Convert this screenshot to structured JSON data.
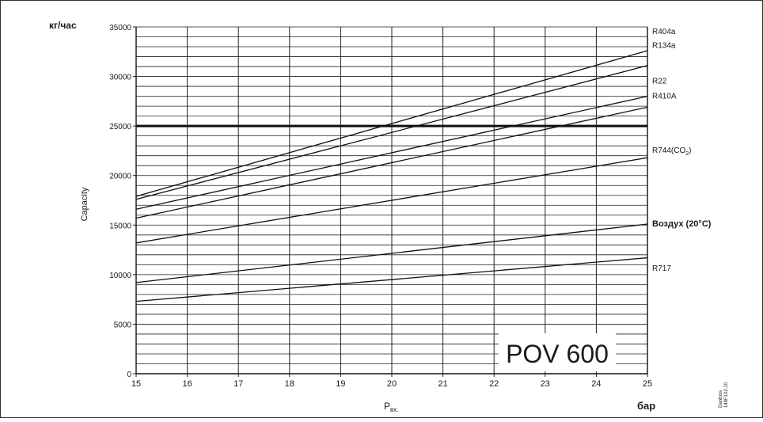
{
  "chart_data": {
    "type": "line",
    "title": "POV 600",
    "xlabel": "P",
    "xlabel_subscript": "вх.",
    "x_unit": "бар",
    "ylabel": "Capacity",
    "y_unit": "кг/час",
    "xlim": [
      15,
      25
    ],
    "ylim": [
      0,
      35000
    ],
    "x_ticks": [
      "15",
      "16",
      "17",
      "18",
      "19",
      "20",
      "21",
      "22",
      "23",
      "24",
      "25"
    ],
    "y_ticks": [
      "0",
      "5000",
      "10000",
      "15000",
      "20000",
      "25000",
      "30000",
      "35000"
    ],
    "y_minor_step": 1000,
    "highlight_y": 25000,
    "grid": true,
    "series": [
      {
        "name": "R404a",
        "x": [
          15,
          25
        ],
        "y": [
          17900,
          32600
        ]
      },
      {
        "name": "R134a",
        "x": [
          15,
          25
        ],
        "y": [
          17600,
          31100
        ]
      },
      {
        "name": "R22",
        "x": [
          15,
          25
        ],
        "y": [
          16600,
          28000
        ]
      },
      {
        "name": "R410A",
        "x": [
          15,
          25
        ],
        "y": [
          15700,
          26900
        ]
      },
      {
        "name": "R744(CO",
        "name_sub": "2",
        "name_suffix": ")",
        "x": [
          15,
          25
        ],
        "y": [
          13200,
          21800
        ]
      },
      {
        "name": "Воздух (20°C)",
        "x": [
          15,
          25
        ],
        "y": [
          9200,
          15100
        ]
      },
      {
        "name": "R717",
        "x": [
          15,
          25
        ],
        "y": [
          7300,
          11700
        ]
      }
    ],
    "series_label_y": [
      34600,
      33200,
      29600,
      28100,
      22600,
      15200,
      10700
    ],
    "credit": [
      "Danfoss",
      "148F102.10"
    ]
  }
}
